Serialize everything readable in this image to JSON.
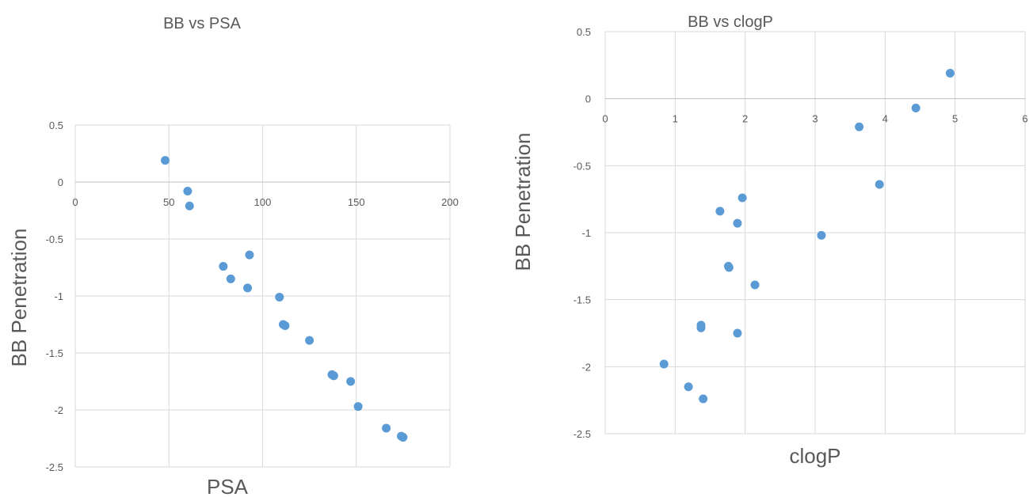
{
  "chart_data": [
    {
      "type": "scatter",
      "title": "BB vs PSA",
      "xlabel": "PSA",
      "ylabel": "BB Penetration",
      "xlim": [
        0,
        200
      ],
      "ylim": [
        -2.5,
        0.5
      ],
      "xticks": [
        "0",
        "50",
        "100",
        "150",
        "200"
      ],
      "yticks": [
        "0.5",
        "0",
        "-0.5",
        "-1",
        "-1.5",
        "-2",
        "-2.5"
      ],
      "grid": true,
      "marker_color": "#5b9bd5",
      "points": [
        {
          "x": 48,
          "y": 0.19
        },
        {
          "x": 60,
          "y": -0.08
        },
        {
          "x": 61,
          "y": -0.21
        },
        {
          "x": 79,
          "y": -0.74
        },
        {
          "x": 83,
          "y": -0.85
        },
        {
          "x": 92,
          "y": -0.93
        },
        {
          "x": 93,
          "y": -0.64
        },
        {
          "x": 109,
          "y": -1.01
        },
        {
          "x": 111,
          "y": -1.25
        },
        {
          "x": 112,
          "y": -1.26
        },
        {
          "x": 125,
          "y": -1.39
        },
        {
          "x": 137,
          "y": -1.69
        },
        {
          "x": 138,
          "y": -1.7
        },
        {
          "x": 147,
          "y": -1.75
        },
        {
          "x": 151,
          "y": -1.97
        },
        {
          "x": 166,
          "y": -2.16
        },
        {
          "x": 174,
          "y": -2.23
        },
        {
          "x": 175,
          "y": -2.24
        }
      ]
    },
    {
      "type": "scatter",
      "title": "BB vs clogP",
      "xlabel": "clogP",
      "ylabel": "BB Penetration",
      "xlim": [
        0,
        6
      ],
      "ylim": [
        -2.5,
        0.5
      ],
      "xticks": [
        "0",
        "1",
        "2",
        "3",
        "4",
        "5",
        "6"
      ],
      "yticks": [
        "0.5",
        "0",
        "-0.5",
        "-1",
        "-1.5",
        "-2",
        "-2.5"
      ],
      "grid": true,
      "marker_color": "#5b9bd5",
      "points": [
        {
          "x": 4.93,
          "y": 0.19
        },
        {
          "x": 4.44,
          "y": -0.07
        },
        {
          "x": 3.63,
          "y": -0.21
        },
        {
          "x": 3.92,
          "y": -0.64
        },
        {
          "x": 1.96,
          "y": -0.74
        },
        {
          "x": 1.64,
          "y": -0.84
        },
        {
          "x": 1.89,
          "y": -0.93
        },
        {
          "x": 3.09,
          "y": -1.02
        },
        {
          "x": 1.76,
          "y": -1.25
        },
        {
          "x": 1.77,
          "y": -1.26
        },
        {
          "x": 2.14,
          "y": -1.39
        },
        {
          "x": 1.37,
          "y": -1.69
        },
        {
          "x": 1.37,
          "y": -1.71
        },
        {
          "x": 1.89,
          "y": -1.75
        },
        {
          "x": 0.84,
          "y": -1.98
        },
        {
          "x": 1.19,
          "y": -2.15
        },
        {
          "x": 1.4,
          "y": -2.24
        }
      ]
    }
  ]
}
